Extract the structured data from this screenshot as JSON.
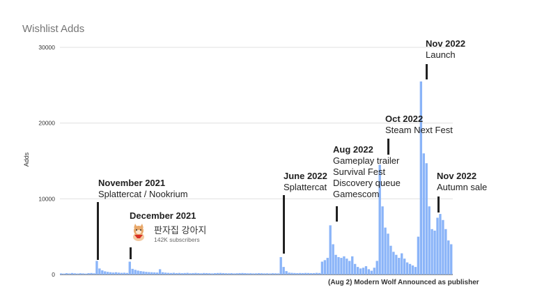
{
  "chart_data": {
    "type": "bar",
    "title": "Wishlist Adds",
    "ylabel": "Adds",
    "xlabel": "",
    "ylim": [
      0,
      30000
    ],
    "yticks": [
      "0",
      "10000",
      "20000",
      "30000"
    ],
    "grid": true,
    "bar_color": "#8ab4f8",
    "values": [
      150,
      120,
      180,
      140,
      200,
      160,
      130,
      170,
      150,
      120,
      180,
      200,
      160,
      1800,
      800,
      550,
      420,
      350,
      300,
      260,
      300,
      250,
      220,
      240,
      210,
      1700,
      750,
      620,
      520,
      450,
      400,
      350,
      320,
      300,
      280,
      260,
      700,
      300,
      250,
      220,
      200,
      230,
      190,
      210,
      180,
      200,
      220,
      170,
      190,
      210,
      180,
      160,
      200,
      190,
      170,
      150,
      180,
      200,
      210,
      190,
      170,
      160,
      180,
      150,
      170,
      190,
      200,
      180,
      160,
      170,
      150,
      160,
      180,
      170,
      150,
      160,
      140,
      170,
      160,
      150,
      2300,
      1000,
      450,
      250,
      220,
      200,
      180,
      200,
      190,
      210,
      200,
      180,
      190,
      220,
      200,
      1700,
      1900,
      2200,
      6500,
      4000,
      2600,
      2300,
      2200,
      2400,
      2100,
      1800,
      2400,
      1400,
      1000,
      800,
      900,
      1100,
      700,
      500,
      900,
      1800,
      14500,
      9000,
      6200,
      5400,
      3800,
      3000,
      2600,
      2200,
      2800,
      2100,
      1600,
      1400,
      1200,
      1000,
      5000,
      25500,
      16000,
      14700,
      9000,
      6000,
      5800,
      7500,
      8000,
      7200,
      6000,
      4500,
      4000
    ],
    "annotations": [
      {
        "title": "November 2021",
        "lines": [
          "Splattercat / Nookrium"
        ]
      },
      {
        "title": "December 2021",
        "channel": "판자집 강아지",
        "subscribers": "142K subscribers"
      },
      {
        "title": "June 2022",
        "lines": [
          "Splattercat"
        ]
      },
      {
        "title": "Aug 2022",
        "lines": [
          "Gameplay trailer",
          "Survival Fest",
          "Discovery queue",
          "Gamescom"
        ]
      },
      {
        "title": "Oct 2022",
        "lines": [
          "Steam Next Fest"
        ]
      },
      {
        "title": "Nov 2022",
        "lines": [
          "Launch"
        ]
      },
      {
        "title": "Nov 2022",
        "lines": [
          "Autumn sale"
        ]
      }
    ],
    "footer": "(Aug 2) Modern Wolf Announced as publisher"
  }
}
